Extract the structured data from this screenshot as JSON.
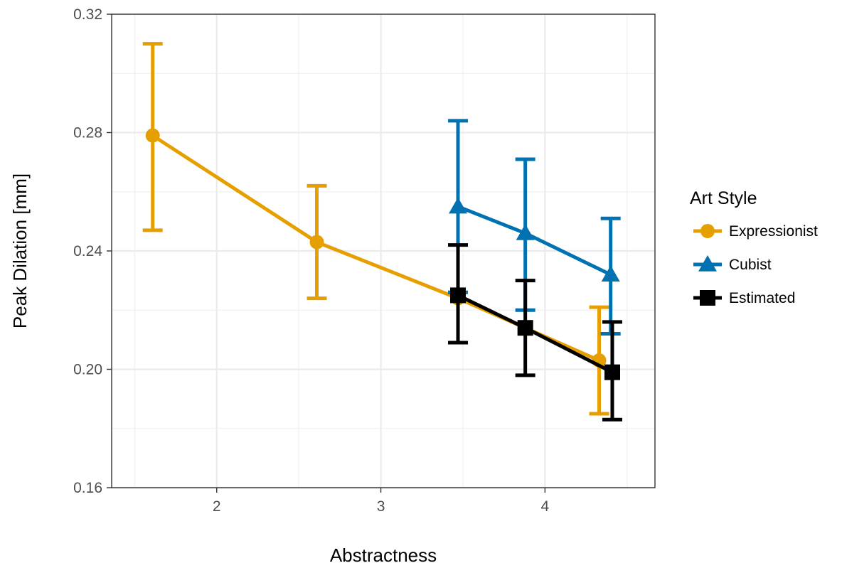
{
  "chart_data": {
    "type": "line",
    "title": "",
    "xlabel": "Abstractness",
    "ylabel": "Peak Dilation [mm]",
    "xlim": [
      1.36,
      4.67
    ],
    "ylim": [
      0.16,
      0.32
    ],
    "x_ticks": [
      2,
      3,
      4
    ],
    "x_tick_labels": [
      "2",
      "3",
      "4"
    ],
    "y_ticks": [
      0.16,
      0.2,
      0.24,
      0.28,
      0.32
    ],
    "y_tick_labels": [
      "0.16",
      "0.20",
      "0.24",
      "0.28",
      "0.32"
    ],
    "x_minor": [
      1.5,
      2.5,
      3.5,
      4.5
    ],
    "y_minor": [
      0.18,
      0.22,
      0.26,
      0.3
    ],
    "grid": true,
    "legend": {
      "title": "Art Style",
      "position": "right"
    },
    "series": [
      {
        "name": "Expressionist",
        "color": "#E69F00",
        "marker": "circle",
        "points": [
          {
            "x": 1.61,
            "y": 0.279,
            "lo": 0.247,
            "hi": 0.31
          },
          {
            "x": 2.61,
            "y": 0.243,
            "lo": 0.224,
            "hi": 0.262
          },
          {
            "x": 3.47,
            "y": 0.224,
            "lo": 0.224,
            "hi": 0.224
          },
          {
            "x": 4.33,
            "y": 0.203,
            "lo": 0.185,
            "hi": 0.221
          }
        ]
      },
      {
        "name": "Cubist",
        "color": "#0072B2",
        "marker": "triangle",
        "points": [
          {
            "x": 3.47,
            "y": 0.255,
            "lo": 0.226,
            "hi": 0.284
          },
          {
            "x": 3.88,
            "y": 0.246,
            "lo": 0.22,
            "hi": 0.271
          },
          {
            "x": 4.4,
            "y": 0.232,
            "lo": 0.212,
            "hi": 0.251
          }
        ]
      },
      {
        "name": "Estimated",
        "color": "#000000",
        "marker": "square",
        "points": [
          {
            "x": 3.47,
            "y": 0.225,
            "lo": 0.209,
            "hi": 0.242
          },
          {
            "x": 3.88,
            "y": 0.214,
            "lo": 0.198,
            "hi": 0.23
          },
          {
            "x": 4.41,
            "y": 0.199,
            "lo": 0.183,
            "hi": 0.216
          }
        ]
      }
    ]
  }
}
